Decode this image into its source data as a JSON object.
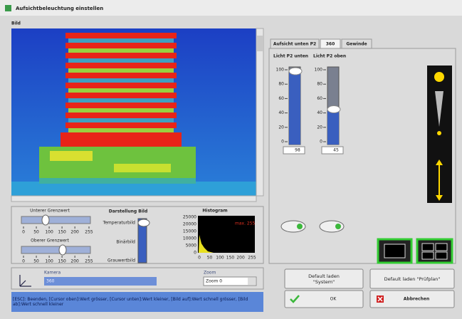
{
  "window": {
    "title": "Aufsichtbeleuchtung einstellen"
  },
  "image_panel": {
    "label": "Bild"
  },
  "tabs": [
    "Aufsicht unten P2",
    "360",
    "Gewinde"
  ],
  "light_sliders": [
    {
      "label": "Licht P2 unten",
      "value": 98
    },
    {
      "label": "Licht P2 oben",
      "value": 45
    }
  ],
  "light_scale": [
    100,
    80,
    60,
    40,
    20,
    0
  ],
  "thresholds": [
    "Unterer Grenzwert",
    "Oberer Grenzwert"
  ],
  "threshold_scale": [
    0,
    50,
    100,
    150,
    200,
    255
  ],
  "display": {
    "title": "Darstellung Bild",
    "options": [
      "Temperaturbild",
      "Binärbild",
      "Grauwertbild"
    ]
  },
  "histogram": {
    "title": "Histogram",
    "annotation": "max. 255",
    "yticks": [
      25000,
      20000,
      15000,
      10000,
      5000,
      0
    ],
    "xticks": [
      0,
      50,
      100,
      150,
      200,
      255
    ]
  },
  "camera": {
    "label": "Kamera",
    "value": "360"
  },
  "zoom": {
    "label": "Zoom",
    "value": "Zoom 0"
  },
  "buttons": {
    "default_system": "Default laden \"System\"",
    "default_plan": "Default laden \"Prüfplan\"",
    "ok": "OK",
    "cancel": "Abbrechen"
  },
  "status": "[ESC]: Beenden, [Cursor oben]:Wert grösser, [Cursor unten]:Wert kleiner, [Bild auf]:Wert schnell grösser, [Bild ab]:Wert schnell kleiner"
}
